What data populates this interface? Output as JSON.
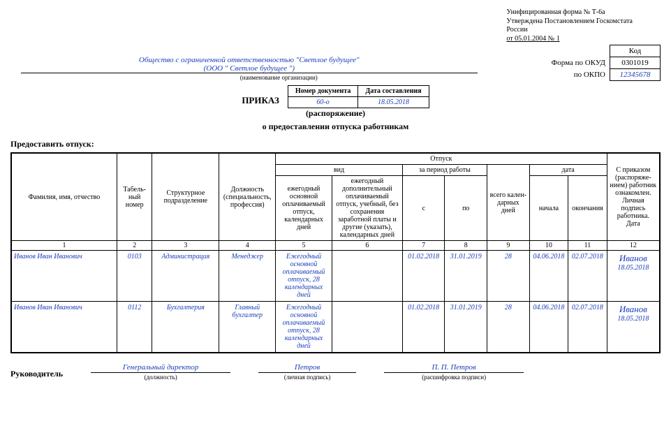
{
  "form_meta": {
    "line1": "Унифицированная форма № Т-6а",
    "line2": "Утверждена Постановлением Госкомстата",
    "line3": "России",
    "line4": "от 05.01.2004 № 1"
  },
  "codes": {
    "kod_label": "Код",
    "okud_label": "Форма по ОКУД",
    "okud": "0301019",
    "okpo_label": "по ОКПО",
    "okpo": "12345678"
  },
  "org": {
    "name_line1": "Общество с ограниченной ответственностью \"Светлое будущее\"",
    "name_line2": "(ООО \" Светлое будущее \")",
    "caption": "(наименование организации)"
  },
  "prikaz": {
    "title": "ПРИКАЗ",
    "subtitle1": "(распоряжение)",
    "subtitle2": "о предоставлении отпуска работникам",
    "docnum_label": "Номер документа",
    "date_label": "Дата составления",
    "docnum": "60-о",
    "date": "18.05.2018"
  },
  "grant": "Предоставить отпуск:",
  "headers": {
    "fio": "Фамилия, имя, отчество",
    "tabno": "Табель-\nный\nномер",
    "struct": "Структурное подразделение",
    "position": "Должность (специальность, профессия)",
    "otpusk": "Отпуск",
    "vid": "вид",
    "vid1": "ежегодный основной оплачиваемый отпуск, календарных дней",
    "vid2": "ежегодный дополнительный оплачиваемый отпуск, учебный, без сохранения заработной платы и другие (указать), календарных дней",
    "period": "за период работы",
    "s": "с",
    "po": "по",
    "vsego": "всего кален-\nдарных дней",
    "data": "дата",
    "nachala": "начала",
    "okonch": "окончания",
    "sign": "С приказом (распоряже-\nнием) работник ознакомлен. Личная подпись работника. Дата"
  },
  "colnums": [
    "1",
    "2",
    "3",
    "4",
    "5",
    "6",
    "7",
    "8",
    "9",
    "10",
    "11",
    "12"
  ],
  "rows": [
    {
      "fio": "Иванов Иван Иванович",
      "tab": "0103",
      "struct": "Администрация",
      "pos": "Менеджер",
      "vid1": "Ежегодный основной оплачиваемый отпуск, 28 календарных дней",
      "vid2": "",
      "s": "01.02.2018",
      "po": "31.01.2019",
      "days": "28",
      "nach": "04.06.2018",
      "okon": "02.07.2018",
      "sign_name": "Иванов",
      "sign_date": "18.05.2018"
    },
    {
      "fio": "Иванов Иван Иванович",
      "tab": "0112",
      "struct": "Бухгалтерия",
      "pos": "Главный бухгалтер",
      "vid1": "Ежегодный основной оплачиваемый отпуск, 28 календарных дней",
      "vid2": "",
      "s": "01.02.2018",
      "po": "31.01.2019",
      "days": "28",
      "nach": "04.06.2018",
      "okon": "02.07.2018",
      "sign_name": "Иванов",
      "sign_date": "18.05.2018"
    }
  ],
  "sig": {
    "leader": "Руководитель",
    "position": "Генеральный директор",
    "position_cap": "(должность)",
    "sign": "Петров",
    "sign_cap": "(личная подпись)",
    "decode": "П. П. Петров",
    "decode_cap": "(расшифровка подписи)"
  }
}
